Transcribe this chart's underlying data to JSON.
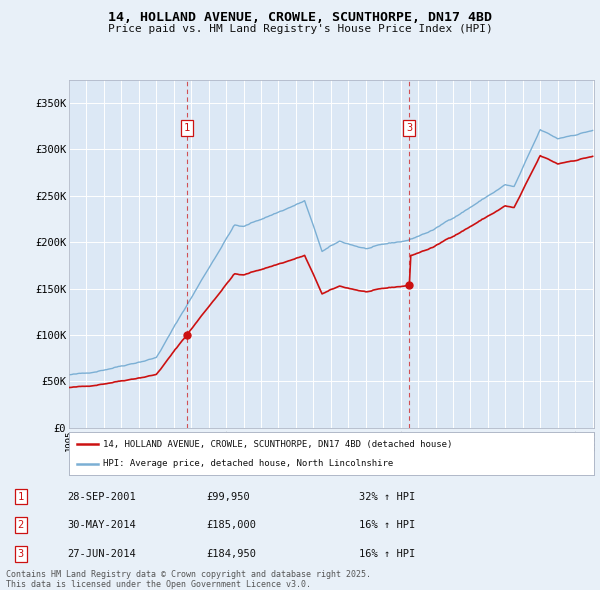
{
  "title": "14, HOLLAND AVENUE, CROWLE, SCUNTHORPE, DN17 4BD",
  "subtitle": "Price paid vs. HM Land Registry's House Price Index (HPI)",
  "background_color": "#e8f0f8",
  "plot_bg_color": "#dce8f5",
  "grid_color": "#ffffff",
  "ylim": [
    0,
    375000
  ],
  "yticks": [
    0,
    50000,
    100000,
    150000,
    200000,
    250000,
    300000,
    350000
  ],
  "ytick_labels": [
    "£0",
    "£50K",
    "£100K",
    "£150K",
    "£200K",
    "£250K",
    "£300K",
    "£350K"
  ],
  "hpi_color": "#7bafd4",
  "price_color": "#cc1111",
  "transactions": [
    {
      "num": 1,
      "date_label": "28-SEP-2001",
      "price": 99950,
      "year": 2001.75
    },
    {
      "num": 2,
      "date_label": "30-MAY-2014",
      "price": 185000,
      "year": 2014.41
    },
    {
      "num": 3,
      "date_label": "27-JUN-2014",
      "price": 184950,
      "year": 2014.5
    }
  ],
  "vline_nums": [
    1,
    3
  ],
  "legend_label_price": "14, HOLLAND AVENUE, CROWLE, SCUNTHORPE, DN17 4BD (detached house)",
  "legend_label_hpi": "HPI: Average price, detached house, North Lincolnshire",
  "footer": "Contains HM Land Registry data © Crown copyright and database right 2025.\nThis data is licensed under the Open Government Licence v3.0.",
  "table_rows": [
    [
      "1",
      "28-SEP-2001",
      "£99,950",
      "32% ↑ HPI"
    ],
    [
      "2",
      "30-MAY-2014",
      "£185,000",
      "16% ↑ HPI"
    ],
    [
      "3",
      "27-JUN-2014",
      "£184,950",
      "16% ↑ HPI"
    ]
  ]
}
